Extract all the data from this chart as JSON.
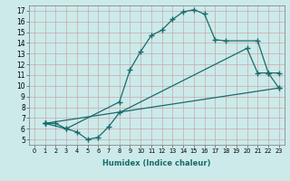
{
  "title": "",
  "xlabel": "Humidex (Indice chaleur)",
  "bg_color": "#cceaea",
  "grid_color": "#b8d8d8",
  "line_color": "#1a6b6b",
  "xlim": [
    -0.5,
    23.5
  ],
  "ylim": [
    4.5,
    17.5
  ],
  "xticks": [
    0,
    1,
    2,
    3,
    4,
    5,
    6,
    7,
    8,
    9,
    10,
    11,
    12,
    13,
    14,
    15,
    16,
    17,
    18,
    19,
    20,
    21,
    22,
    23
  ],
  "yticks": [
    5,
    6,
    7,
    8,
    9,
    10,
    11,
    12,
    13,
    14,
    15,
    16,
    17
  ],
  "line1_x": [
    1,
    2,
    3,
    8,
    9,
    10,
    11,
    12,
    13,
    14,
    15,
    16,
    17,
    18,
    21,
    22,
    23
  ],
  "line1_y": [
    6.5,
    6.5,
    6.0,
    8.5,
    11.5,
    13.2,
    14.7,
    15.2,
    16.2,
    16.9,
    17.1,
    16.7,
    14.3,
    14.2,
    14.2,
    11.2,
    11.2
  ],
  "line2_x": [
    1,
    3,
    4,
    5,
    6,
    7,
    8,
    20,
    21,
    22,
    23
  ],
  "line2_y": [
    6.5,
    6.0,
    5.7,
    5.0,
    5.2,
    6.2,
    7.5,
    13.5,
    11.2,
    11.2,
    9.8
  ],
  "line3_x": [
    1,
    23
  ],
  "line3_y": [
    6.5,
    9.8
  ],
  "xlabel_fontsize": 6.0,
  "tick_fontsize_x": 4.8,
  "tick_fontsize_y": 5.5
}
